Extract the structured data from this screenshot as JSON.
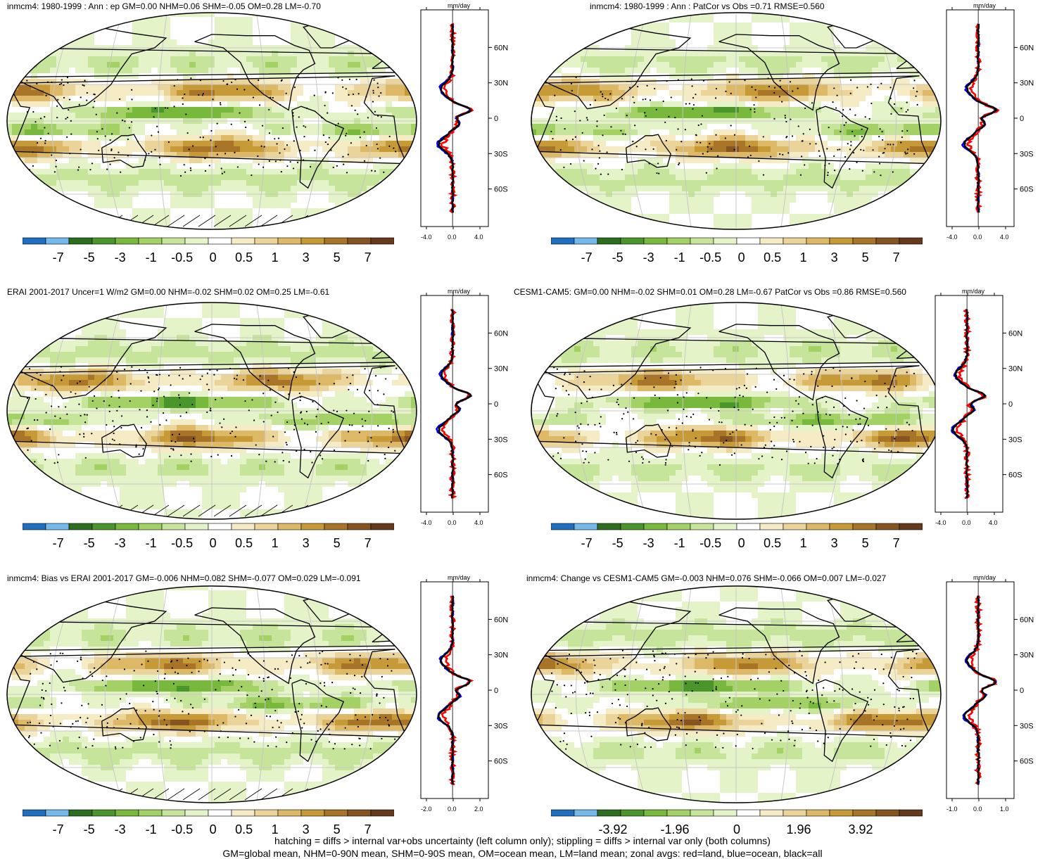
{
  "colors": {
    "palette": [
      "#1f6fc0",
      "#74b9ec",
      "#2c6e1d",
      "#4b962c",
      "#78b83d",
      "#a3d165",
      "#c6e49a",
      "#e5f3c8",
      "#ffffff",
      "#f5ebc4",
      "#ebd49a",
      "#dcb867",
      "#c79a38",
      "#a77428",
      "#865322",
      "#66391a"
    ],
    "land_outline": "#000000",
    "zonal_land": "#ff0000",
    "zonal_ocean": "#0000ff",
    "zonal_all": "#000000"
  },
  "panels": [
    {
      "id": "p1",
      "title": "inmcm4: 1980-1999 : Ann : ep GM=0.00 NHM=0.06 SHM=-0.05 OM=0.28 LM=-0.70",
      "zonal_unit": "mm/day",
      "zonal_xticks": [
        "-4.0",
        "0.0",
        "4.0"
      ],
      "lat_labels": [
        "60N",
        "30N",
        "0",
        "30S",
        "60S"
      ],
      "cbar_labels": [
        "-7",
        "-5",
        "-3",
        "-1",
        "-0.5",
        "0",
        "0.5",
        "1",
        "3",
        "5",
        "7"
      ],
      "hatching": true,
      "seed": 3
    },
    {
      "id": "p2",
      "title": "inmcm4: 1980-1999 : Ann : PatCor vs Obs =0.71 RMSE=0.560",
      "zonal_unit": "mm/day",
      "zonal_xticks": [
        "-4.0",
        "0.0",
        "4.0"
      ],
      "lat_labels": [
        "60N",
        "30N",
        "0",
        "30S",
        "60S"
      ],
      "cbar_labels": [
        "-7",
        "-5",
        "-3",
        "-1",
        "-0.5",
        "0",
        "0.5",
        "1",
        "3",
        "5",
        "7"
      ],
      "hatching": false,
      "seed": 5
    },
    {
      "id": "p3",
      "title": "ERAI 2001-2017 Uncer=1 W/m2 GM=0.00 NHM=-0.02 SHM=0.02 OM=0.25 LM=-0.61",
      "zonal_unit": "mm/day",
      "zonal_xticks": [
        "-4.0",
        "0.0",
        "4.0"
      ],
      "lat_labels": [
        "60N",
        "30N",
        "0",
        "30S",
        "60S"
      ],
      "cbar_labels": [
        "-7",
        "-5",
        "-3",
        "-1",
        "-0.5",
        "0",
        "0.5",
        "1",
        "3",
        "5",
        "7"
      ],
      "hatching": true,
      "seed": 7
    },
    {
      "id": "p4",
      "title": "CESM1-CAM5: GM=0.00 NHM=-0.02 SHM=0.01 OM=0.28 LM=-0.67 PatCor vs Obs =0.86 RMSE=0.560",
      "zonal_unit": "mm/day",
      "zonal_xticks": [
        "-4.0",
        "0.0",
        "4.0"
      ],
      "lat_labels": [
        "60N",
        "30N",
        "0",
        "30S",
        "60S"
      ],
      "cbar_labels": [
        "-7",
        "-5",
        "-3",
        "-1",
        "-0.5",
        "0",
        "0.5",
        "1",
        "3",
        "5",
        "7"
      ],
      "hatching": false,
      "seed": 11
    },
    {
      "id": "p5",
      "title": "inmcm4: Bias vs ERAI 2001-2017 GM=-0.006 NHM=0.082 SHM=-0.077 OM=0.029 LM=-0.091",
      "zonal_unit": "mm/day",
      "zonal_xticks": [
        "-2.0",
        "0.0",
        "2.0"
      ],
      "lat_labels": [
        "60N",
        "30N",
        "0",
        "30S",
        "60S"
      ],
      "cbar_labels": [
        "-7",
        "-5",
        "-3",
        "-1",
        "-0.5",
        "0",
        "0.5",
        "1",
        "3",
        "5",
        "7"
      ],
      "hatching": true,
      "seed": 13
    },
    {
      "id": "p6",
      "title": "inmcm4: Change vs CESM1-CAM5 GM=-0.003 NHM=0.076 SHM=-0.066 OM=0.007 LM=-0.027",
      "zonal_unit": "mm/day",
      "zonal_xticks": [
        "-1.0",
        "0.0",
        "1.0"
      ],
      "lat_labels": [
        "60N",
        "30N",
        "0",
        "30S",
        "60S"
      ],
      "cbar_labels": [
        "-3.92",
        "-1.96",
        "0",
        "1.96",
        "3.92"
      ],
      "hatching": false,
      "seed": 17
    }
  ],
  "footer": {
    "line1": "hatching = diffs > internal var+obs uncertainty (left column only); stippling = diffs > internal var only (both columns)",
    "line2": "GM=global mean, NHM=0-90N mean, SHM=0-90S mean, OM=ocean mean, LM=land mean; zonal avgs: red=land, blue=ocean, black=all"
  }
}
